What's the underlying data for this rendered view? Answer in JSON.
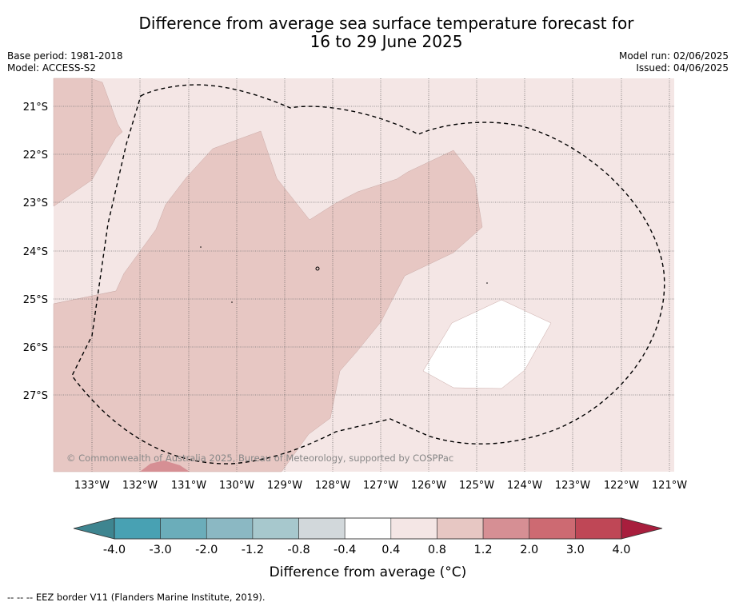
{
  "title_line1": "Difference from average sea surface temperature forecast for",
  "title_line2": "16 to 29 June 2025",
  "base_period": "Base period: 1981-2018",
  "model": "Model: ACCESS-S2",
  "model_run": "Model run: 02/06/2025",
  "issued": "Issued: 04/06/2025",
  "copyright": "© Commonwealth of Australia 2025, Bureau of Meteorology, supported by COSPPac",
  "lat_labels": [
    "21°S",
    "22°S",
    "23°S",
    "24°S",
    "25°S",
    "26°S",
    "27°S"
  ],
  "lon_labels": [
    "133°W",
    "132°W",
    "131°W",
    "130°W",
    "129°W",
    "128°W",
    "127°W",
    "126°W",
    "125°W",
    "124°W",
    "123°W",
    "122°W",
    "121°W"
  ],
  "colorbar": {
    "label": "Difference from average (°C)",
    "ticks": [
      "-4.0",
      "-3.0",
      "-2.0",
      "-1.2",
      "-0.8",
      "-0.4",
      "0.4",
      "0.8",
      "1.2",
      "2.0",
      "3.0",
      "4.0"
    ],
    "colors": [
      "#48a1b3",
      "#6badba",
      "#8bb8c3",
      "#a7c8cd",
      "#d2d8db",
      "#ffffff",
      "#f4e6e5",
      "#e7c7c3",
      "#d68f94",
      "#cd6a72",
      "#bf4756"
    ],
    "under_color": "#3e8590",
    "over_color": "#a81e3d"
  },
  "map_colors": {
    "class_0_4_to_0_8": "#f4e6e5",
    "class_0_8_to_1_2": "#e7c7c3",
    "class_1_2_to_2_0": "#d68f94",
    "class_neutral": "#ffffff"
  },
  "footnote": "-- -- -- EEZ border V11 (Flanders Marine Institute, 2019)."
}
